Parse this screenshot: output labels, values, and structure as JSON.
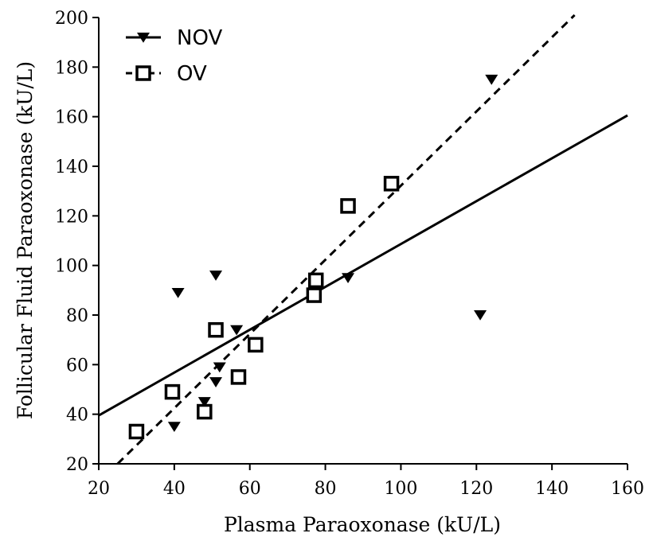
{
  "chart_data": {
    "type": "scatter",
    "xlabel": "Plasma Paraoxonase (kU/L)",
    "ylabel": "Follicular Fluid Paraoxonase (kU/L)",
    "xlim": [
      20,
      160
    ],
    "ylim": [
      20,
      200
    ],
    "xticks": [
      "20",
      "40",
      "60",
      "80",
      "100",
      "120",
      "140",
      "160"
    ],
    "yticks": [
      "20",
      "40",
      "60",
      "80",
      "100",
      "120",
      "140",
      "160",
      "180",
      "200"
    ],
    "grid": false,
    "legend": "top-left",
    "series": [
      {
        "name": "NOV",
        "marker": "triangle-down-filled",
        "line": "solid",
        "color": "#000000",
        "points": [
          {
            "x": 40,
            "y": 35
          },
          {
            "x": 41,
            "y": 89
          },
          {
            "x": 48,
            "y": 45
          },
          {
            "x": 51,
            "y": 53
          },
          {
            "x": 51,
            "y": 96
          },
          {
            "x": 52,
            "y": 59
          },
          {
            "x": 56.5,
            "y": 74
          },
          {
            "x": 86,
            "y": 95
          },
          {
            "x": 121,
            "y": 80
          },
          {
            "x": 124,
            "y": 175
          }
        ],
        "fit": {
          "x": [
            20,
            160
          ],
          "y": [
            39.5,
            160.5
          ]
        }
      },
      {
        "name": "OV",
        "marker": "square-open",
        "line": "dashed",
        "color": "#000000",
        "points": [
          {
            "x": 30,
            "y": 33
          },
          {
            "x": 39.5,
            "y": 49
          },
          {
            "x": 48,
            "y": 41
          },
          {
            "x": 51,
            "y": 74
          },
          {
            "x": 57,
            "y": 55
          },
          {
            "x": 61.5,
            "y": 68
          },
          {
            "x": 77,
            "y": 88
          },
          {
            "x": 77.5,
            "y": 94
          },
          {
            "x": 86,
            "y": 124
          },
          {
            "x": 97.5,
            "y": 133
          }
        ],
        "fit": {
          "x": [
            25,
            146
          ],
          "y": [
            20,
            201
          ]
        }
      }
    ]
  }
}
